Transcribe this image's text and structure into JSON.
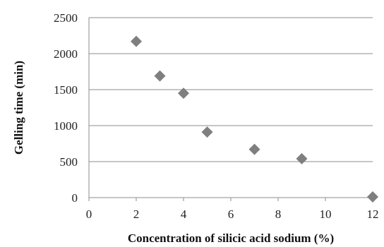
{
  "chart_data": {
    "type": "scatter",
    "xlabel": "Concentration of silicic acid sodium (%)",
    "ylabel": "Gelling time (min)",
    "xlim": [
      0,
      12
    ],
    "ylim": [
      0,
      2500
    ],
    "xticks": [
      "0",
      "2",
      "4",
      "6",
      "8",
      "10",
      "12"
    ],
    "yticks": [
      "0",
      "500",
      "1000",
      "1500",
      "2000",
      "2500"
    ],
    "grid": "horizontal",
    "marker": "diamond",
    "marker_color": "#7f7f7f",
    "points": [
      {
        "x": 2,
        "y": 2170
      },
      {
        "x": 3,
        "y": 1690
      },
      {
        "x": 4,
        "y": 1450
      },
      {
        "x": 5,
        "y": 910
      },
      {
        "x": 7,
        "y": 670
      },
      {
        "x": 9,
        "y": 540
      },
      {
        "x": 12,
        "y": 10
      }
    ]
  }
}
